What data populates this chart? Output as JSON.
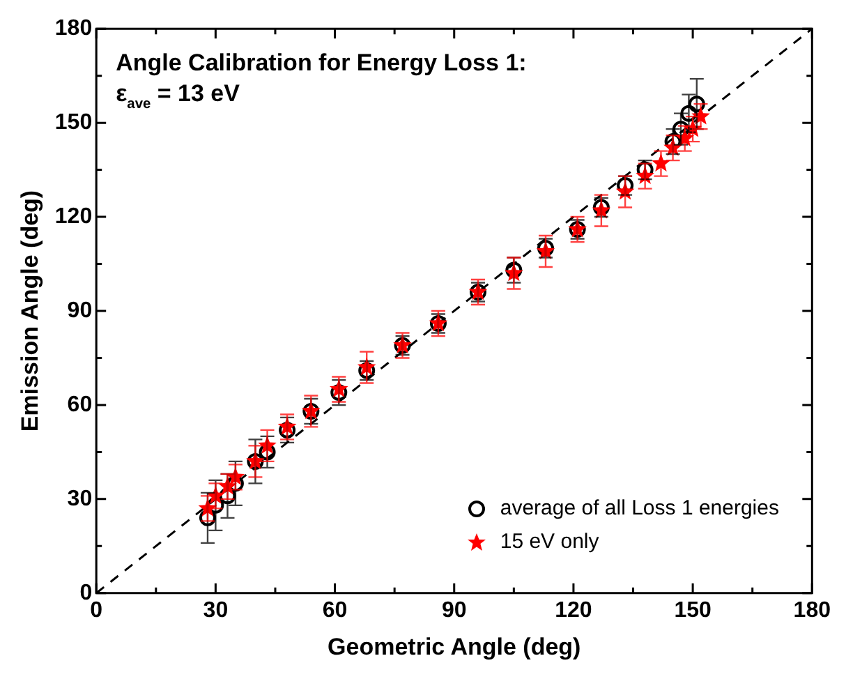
{
  "chart_data": {
    "type": "scatter",
    "title": "Angle Calibration for Energy Loss 1:",
    "subtitle": "ε$_{ave}$ = 13 eV",
    "xlabel": "Geometric Angle (deg)",
    "ylabel": "Emission Angle (deg)",
    "xlim": [
      0,
      180
    ],
    "ylim": [
      0,
      180
    ],
    "xticks": [
      0,
      30,
      60,
      90,
      120,
      150,
      180
    ],
    "yticks": [
      0,
      30,
      60,
      90,
      120,
      150,
      180
    ],
    "grid": false,
    "legend": "bottom right",
    "series": [
      {
        "name": "average of all Loss 1 energies",
        "color": "#000000",
        "marker": "circle",
        "x": [
          28,
          30,
          33,
          35,
          40,
          43,
          48,
          54,
          61,
          68,
          77,
          86,
          96,
          105,
          113,
          121,
          127,
          133,
          138,
          145,
          147,
          149,
          151
        ],
        "values": [
          24,
          28,
          31,
          35,
          42,
          45,
          52,
          58,
          64,
          71,
          79,
          86,
          96,
          103,
          110,
          116,
          123,
          130,
          135,
          144,
          148,
          153,
          156
        ],
        "errors": [
          8,
          8,
          7,
          7,
          7,
          5,
          4,
          4,
          4,
          3,
          3,
          3,
          3,
          4,
          3,
          3,
          3,
          3,
          3,
          4,
          5,
          6,
          8
        ]
      },
      {
        "name": "15 eV only",
        "color": "#ff0000",
        "marker": "star",
        "x": [
          28,
          30,
          33,
          35,
          40,
          43,
          48,
          54,
          61,
          68,
          77,
          86,
          96,
          105,
          113,
          121,
          127,
          133,
          138,
          142,
          145,
          148,
          150,
          152
        ],
        "values": [
          27,
          31,
          34,
          37,
          42,
          47,
          53,
          58,
          65,
          72,
          79,
          86,
          96,
          102,
          109,
          116,
          122,
          128,
          133,
          137,
          142,
          145,
          148,
          152
        ],
        "errors": [
          4,
          4,
          4,
          4,
          5,
          5,
          4,
          5,
          4,
          5,
          4,
          4,
          4,
          5,
          5,
          4,
          5,
          5,
          4,
          4,
          4,
          4,
          4,
          4
        ]
      },
      {
        "type": "line",
        "color": "#000000",
        "line_style": "dashed",
        "marker": "none",
        "x": [
          0,
          180
        ],
        "values": [
          0,
          180
        ]
      }
    ]
  }
}
